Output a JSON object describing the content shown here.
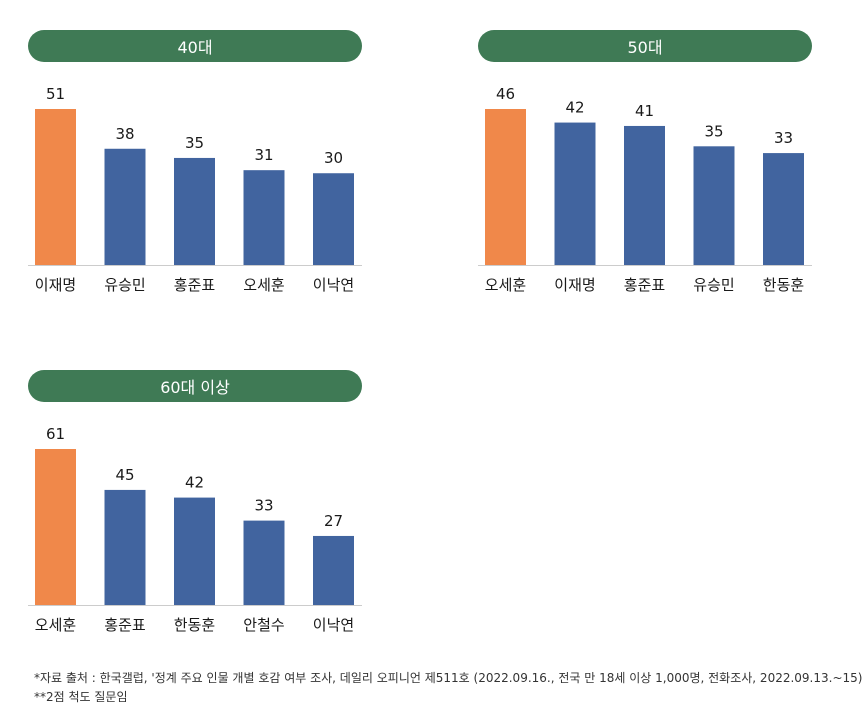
{
  "colors": {
    "header": "#3f7a55",
    "highlight": "#f0884a",
    "bar": "#41649f",
    "axis": "#cccccc"
  },
  "chart_data": [
    {
      "type": "bar",
      "title": "40대",
      "categories": [
        "이재명",
        "유승민",
        "홍준표",
        "오세훈",
        "이낙연"
      ],
      "values": [
        51,
        38,
        35,
        31,
        30
      ],
      "highlight_index": 0,
      "ylim": [
        0,
        51
      ]
    },
    {
      "type": "bar",
      "title": "50대",
      "categories": [
        "오세훈",
        "이재명",
        "홍준표",
        "유승민",
        "한동훈"
      ],
      "values": [
        46,
        42,
        41,
        35,
        33
      ],
      "highlight_index": 0,
      "ylim": [
        0,
        46
      ]
    },
    {
      "type": "bar",
      "title": "60대 이상",
      "categories": [
        "오세훈",
        "홍준표",
        "한동훈",
        "안철수",
        "이낙연"
      ],
      "values": [
        61,
        45,
        42,
        33,
        27
      ],
      "highlight_index": 0,
      "ylim": [
        0,
        61
      ]
    }
  ],
  "footnotes": {
    "source": "*자료 출처 : 한국갤럽, '정계 주요 인물 개별 호감 여부 조사, 데일리 오피니언 제511호 (2022.09.16., 전국 만 18세 이상 1,000명, 전화조사, 2022.09.13.~15)",
    "scale": "**2점 척도 질문임"
  }
}
